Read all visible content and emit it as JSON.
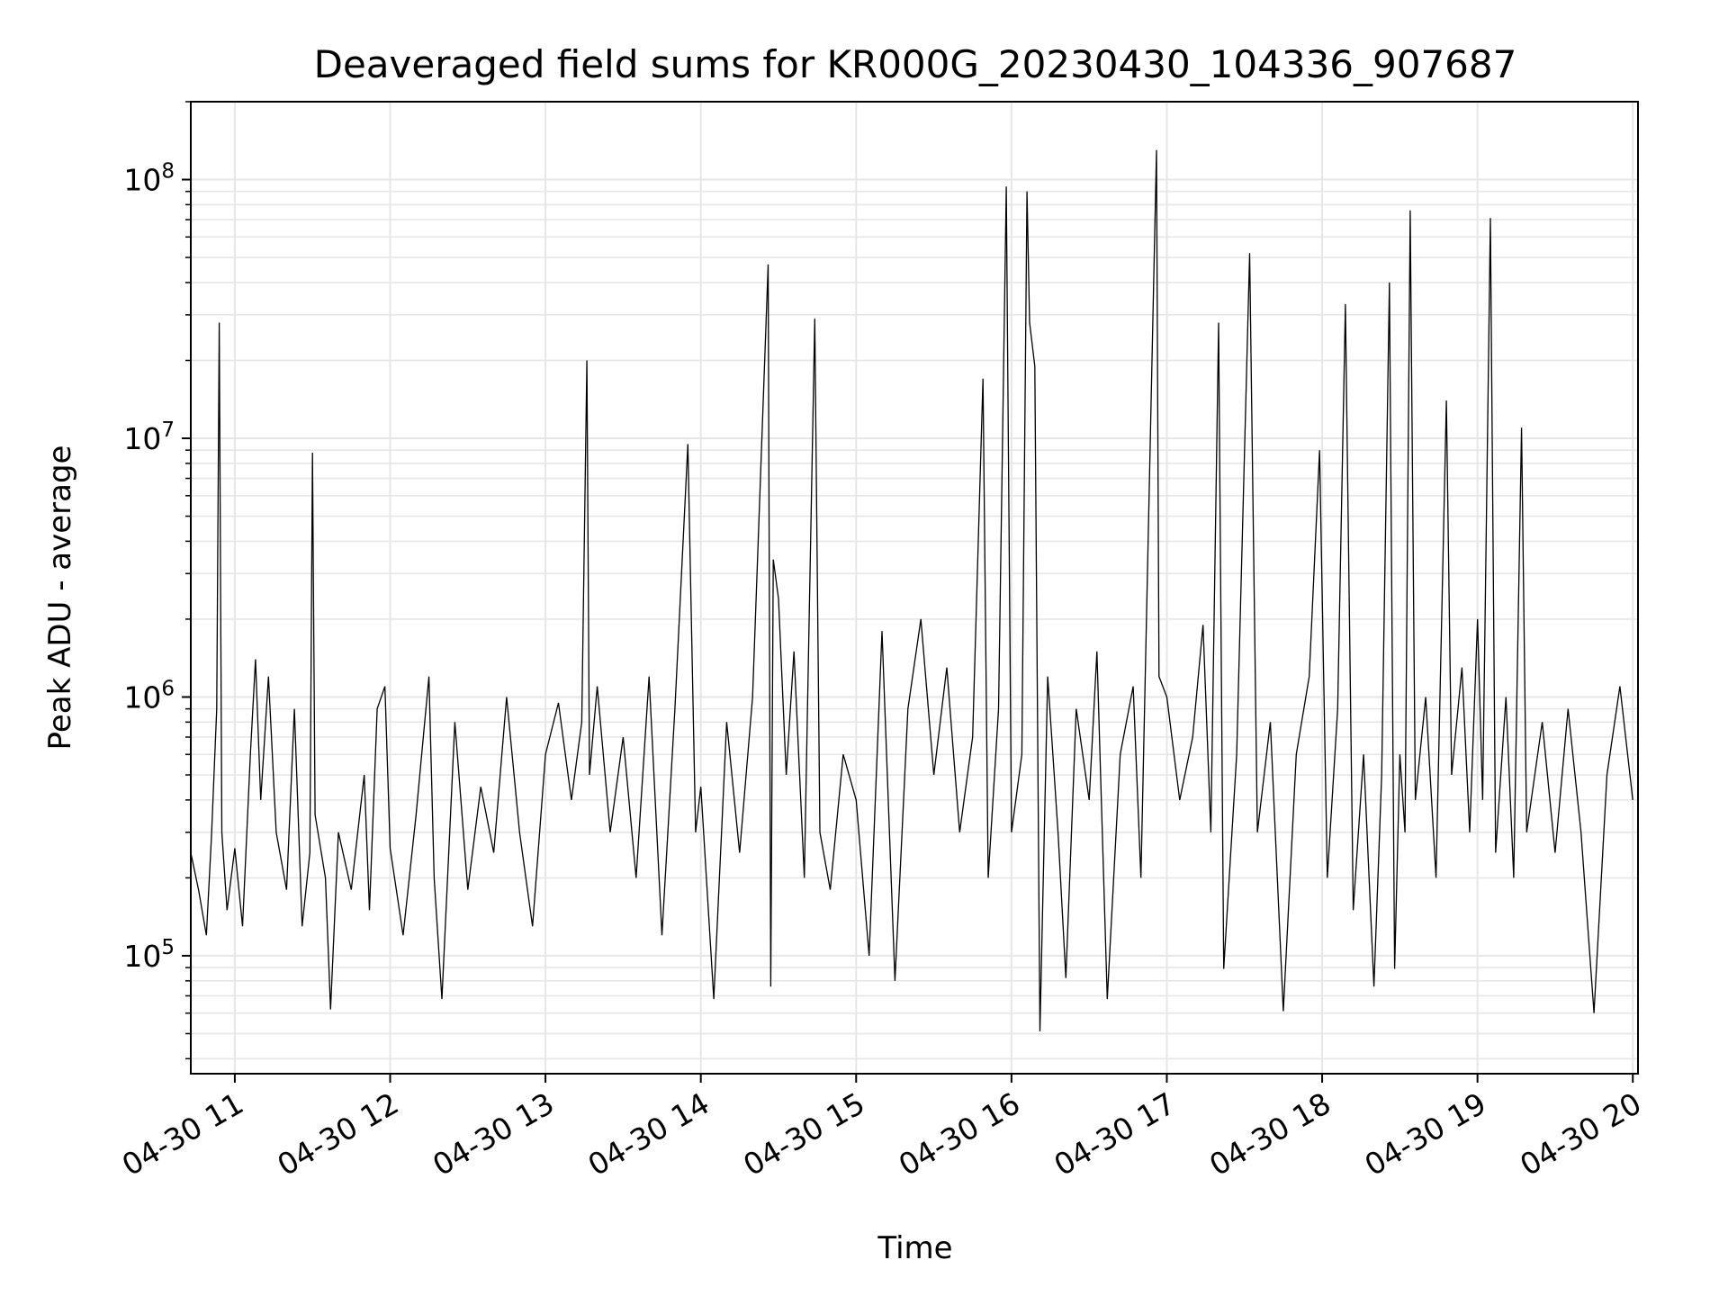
{
  "chart_data": {
    "type": "line",
    "title": "Deaveraged field sums for KR000G_20230430_104336_907687",
    "xlabel": "Time",
    "ylabel": "Peak ADU - average",
    "yscale": "log",
    "ylim": [
      35000,
      200000000
    ],
    "xlim": [
      "04-30 10:43",
      "04-30 20:02"
    ],
    "grid": true,
    "line_color": "#000000",
    "grid_color": "#e6e6e6",
    "x_ticks": [
      {
        "value": "04-30 11:00",
        "label": "04-30 11"
      },
      {
        "value": "04-30 12:00",
        "label": "04-30 12"
      },
      {
        "value": "04-30 13:00",
        "label": "04-30 13"
      },
      {
        "value": "04-30 14:00",
        "label": "04-30 14"
      },
      {
        "value": "04-30 15:00",
        "label": "04-30 15"
      },
      {
        "value": "04-30 16:00",
        "label": "04-30 16"
      },
      {
        "value": "04-30 17:00",
        "label": "04-30 17"
      },
      {
        "value": "04-30 18:00",
        "label": "04-30 18"
      },
      {
        "value": "04-30 19:00",
        "label": "04-30 19"
      },
      {
        "value": "04-30 20:00",
        "label": "04-30 20"
      }
    ],
    "y_ticks": [
      {
        "value": 100000,
        "base": "10",
        "exp": "5"
      },
      {
        "value": 1000000,
        "base": "10",
        "exp": "6"
      },
      {
        "value": 10000000,
        "base": "10",
        "exp": "7"
      },
      {
        "value": 100000000,
        "base": "10",
        "exp": "8"
      }
    ],
    "series": [
      {
        "values": [
          [
            "04-30 10:43",
            250000
          ],
          [
            "04-30 10:46",
            180000
          ],
          [
            "04-30 10:49",
            120000
          ],
          [
            "04-30 10:51",
            290000
          ],
          [
            "04-30 10:53",
            900000
          ],
          [
            "04-30 10:54",
            28000000
          ],
          [
            "04-30 10:55",
            300000
          ],
          [
            "04-30 10:57",
            150000
          ],
          [
            "04-30 11:00",
            260000
          ],
          [
            "04-30 11:03",
            130000
          ],
          [
            "04-30 11:06",
            600000
          ],
          [
            "04-30 11:08",
            1400000
          ],
          [
            "04-30 11:10",
            400000
          ],
          [
            "04-30 11:13",
            1200000
          ],
          [
            "04-30 11:16",
            300000
          ],
          [
            "04-30 11:20",
            180000
          ],
          [
            "04-30 11:23",
            900000
          ],
          [
            "04-30 11:26",
            130000
          ],
          [
            "04-30 11:29",
            250000
          ],
          [
            "04-30 11:30",
            8800000
          ],
          [
            "04-30 11:31",
            350000
          ],
          [
            "04-30 11:35",
            200000
          ],
          [
            "04-30 11:37",
            62000
          ],
          [
            "04-30 11:40",
            300000
          ],
          [
            "04-30 11:45",
            180000
          ],
          [
            "04-30 11:50",
            500000
          ],
          [
            "04-30 11:52",
            150000
          ],
          [
            "04-30 11:55",
            900000
          ],
          [
            "04-30 11:58",
            1100000
          ],
          [
            "04-30 12:00",
            260000
          ],
          [
            "04-30 12:05",
            120000
          ],
          [
            "04-30 12:10",
            350000
          ],
          [
            "04-30 12:15",
            1200000
          ],
          [
            "04-30 12:17",
            200000
          ],
          [
            "04-30 12:20",
            68000
          ],
          [
            "04-30 12:25",
            800000
          ],
          [
            "04-30 12:30",
            180000
          ],
          [
            "04-30 12:35",
            450000
          ],
          [
            "04-30 12:40",
            250000
          ],
          [
            "04-30 12:45",
            1000000
          ],
          [
            "04-30 12:50",
            300000
          ],
          [
            "04-30 12:55",
            130000
          ],
          [
            "04-30 13:00",
            600000
          ],
          [
            "04-30 13:05",
            950000
          ],
          [
            "04-30 13:10",
            400000
          ],
          [
            "04-30 13:14",
            800000
          ],
          [
            "04-30 13:16",
            20000000
          ],
          [
            "04-30 13:17",
            500000
          ],
          [
            "04-30 13:20",
            1100000
          ],
          [
            "04-30 13:25",
            300000
          ],
          [
            "04-30 13:30",
            700000
          ],
          [
            "04-30 13:35",
            200000
          ],
          [
            "04-30 13:40",
            1200000
          ],
          [
            "04-30 13:45",
            120000
          ],
          [
            "04-30 13:50",
            900000
          ],
          [
            "04-30 13:55",
            9500000
          ],
          [
            "04-30 13:58",
            300000
          ],
          [
            "04-30 14:00",
            450000
          ],
          [
            "04-30 14:05",
            68000
          ],
          [
            "04-30 14:10",
            800000
          ],
          [
            "04-30 14:15",
            250000
          ],
          [
            "04-30 14:20",
            1000000
          ],
          [
            "04-30 14:26",
            47000000
          ],
          [
            "04-30 14:27",
            76000
          ],
          [
            "04-30 14:28",
            3400000
          ],
          [
            "04-30 14:30",
            2400000
          ],
          [
            "04-30 14:33",
            500000
          ],
          [
            "04-30 14:36",
            1500000
          ],
          [
            "04-30 14:40",
            200000
          ],
          [
            "04-30 14:44",
            29000000
          ],
          [
            "04-30 14:46",
            300000
          ],
          [
            "04-30 14:50",
            180000
          ],
          [
            "04-30 14:55",
            600000
          ],
          [
            "04-30 15:00",
            400000
          ],
          [
            "04-30 15:05",
            100000
          ],
          [
            "04-30 15:10",
            1800000
          ],
          [
            "04-30 15:15",
            80000
          ],
          [
            "04-30 15:20",
            900000
          ],
          [
            "04-30 15:25",
            2000000
          ],
          [
            "04-30 15:30",
            500000
          ],
          [
            "04-30 15:35",
            1300000
          ],
          [
            "04-30 15:40",
            300000
          ],
          [
            "04-30 15:45",
            700000
          ],
          [
            "04-30 15:49",
            17000000
          ],
          [
            "04-30 15:51",
            200000
          ],
          [
            "04-30 15:55",
            900000
          ],
          [
            "04-30 15:58",
            94000000
          ],
          [
            "04-30 16:00",
            300000
          ],
          [
            "04-30 16:04",
            600000
          ],
          [
            "04-30 16:06",
            90000000
          ],
          [
            "04-30 16:07",
            28000000
          ],
          [
            "04-30 16:09",
            19000000
          ],
          [
            "04-30 16:11",
            51000
          ],
          [
            "04-30 16:14",
            1200000
          ],
          [
            "04-30 16:18",
            300000
          ],
          [
            "04-30 16:21",
            82000
          ],
          [
            "04-30 16:25",
            900000
          ],
          [
            "04-30 16:30",
            400000
          ],
          [
            "04-30 16:33",
            1500000
          ],
          [
            "04-30 16:37",
            68000
          ],
          [
            "04-30 16:42",
            600000
          ],
          [
            "04-30 16:47",
            1100000
          ],
          [
            "04-30 16:50",
            200000
          ],
          [
            "04-30 16:56",
            130000000
          ],
          [
            "04-30 16:57",
            1200000
          ],
          [
            "04-30 17:00",
            1000000
          ],
          [
            "04-30 17:05",
            400000
          ],
          [
            "04-30 17:10",
            700000
          ],
          [
            "04-30 17:14",
            1900000
          ],
          [
            "04-30 17:17",
            300000
          ],
          [
            "04-30 17:20",
            28000000
          ],
          [
            "04-30 17:22",
            89000
          ],
          [
            "04-30 17:27",
            600000
          ],
          [
            "04-30 17:32",
            52000000
          ],
          [
            "04-30 17:35",
            300000
          ],
          [
            "04-30 17:40",
            800000
          ],
          [
            "04-30 17:45",
            61000
          ],
          [
            "04-30 17:50",
            600000
          ],
          [
            "04-30 17:55",
            1200000
          ],
          [
            "04-30 17:59",
            9000000
          ],
          [
            "04-30 18:02",
            200000
          ],
          [
            "04-30 18:06",
            900000
          ],
          [
            "04-30 18:09",
            33000000
          ],
          [
            "04-30 18:12",
            150000
          ],
          [
            "04-30 18:16",
            600000
          ],
          [
            "04-30 18:20",
            76000
          ],
          [
            "04-30 18:23",
            500000
          ],
          [
            "04-30 18:26",
            40000000
          ],
          [
            "04-30 18:28",
            89000
          ],
          [
            "04-30 18:30",
            600000
          ],
          [
            "04-30 18:32",
            300000
          ],
          [
            "04-30 18:34",
            76000000
          ],
          [
            "04-30 18:36",
            400000
          ],
          [
            "04-30 18:40",
            1000000
          ],
          [
            "04-30 18:44",
            200000
          ],
          [
            "04-30 18:48",
            14000000
          ],
          [
            "04-30 18:50",
            500000
          ],
          [
            "04-30 18:54",
            1300000
          ],
          [
            "04-30 18:57",
            300000
          ],
          [
            "04-30 19:00",
            2000000
          ],
          [
            "04-30 19:02",
            400000
          ],
          [
            "04-30 19:05",
            71000000
          ],
          [
            "04-30 19:07",
            250000
          ],
          [
            "04-30 19:11",
            1000000
          ],
          [
            "04-30 19:14",
            200000
          ],
          [
            "04-30 19:17",
            11000000
          ],
          [
            "04-30 19:19",
            300000
          ],
          [
            "04-30 19:25",
            800000
          ],
          [
            "04-30 19:30",
            250000
          ],
          [
            "04-30 19:35",
            900000
          ],
          [
            "04-30 19:40",
            300000
          ],
          [
            "04-30 19:45",
            60000
          ],
          [
            "04-30 19:50",
            500000
          ],
          [
            "04-30 19:55",
            1100000
          ],
          [
            "04-30 20:00",
            400000
          ]
        ]
      }
    ]
  }
}
